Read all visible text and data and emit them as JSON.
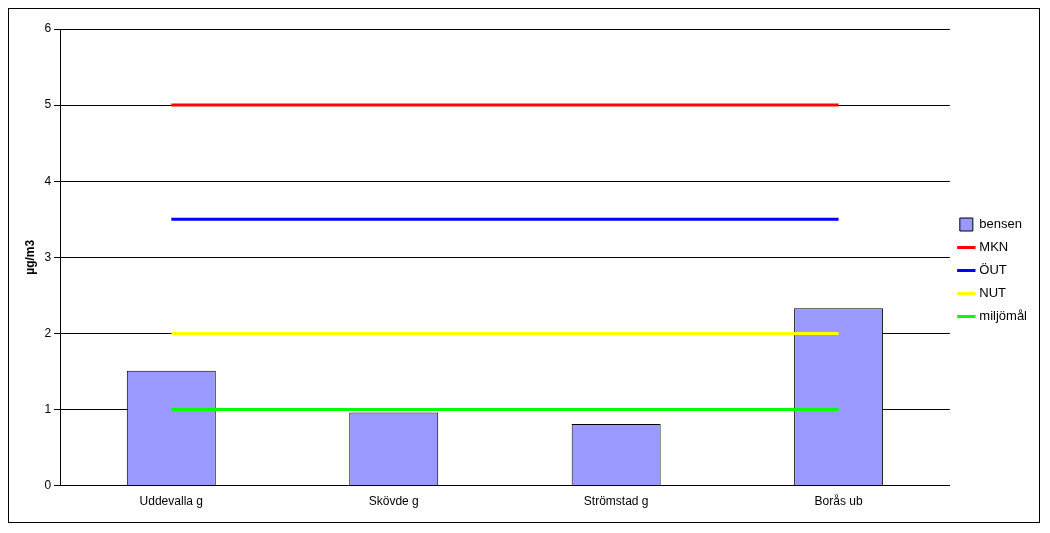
{
  "chart_data": {
    "type": "bar",
    "ylabel": "µg/m3",
    "categories": [
      "Uddevalla g",
      "Skövde g",
      "Strömstad g",
      "Borås ub"
    ],
    "series": [
      {
        "name": "bensen",
        "color": "#9999ff",
        "values": [
          1.51,
          0.96,
          0.81,
          2.33
        ]
      },
      {
        "name": "MKN",
        "type": "line",
        "color": "#ff0000",
        "values": [
          5,
          5,
          5,
          5
        ]
      },
      {
        "name": "ÖUT",
        "type": "line",
        "color": "#0000ff",
        "values": [
          3.5,
          3.5,
          3.5,
          3.5
        ]
      },
      {
        "name": "NUT",
        "type": "line",
        "color": "#ffff00",
        "values": [
          2,
          2,
          2,
          2
        ]
      },
      {
        "name": "miljömål",
        "type": "line",
        "color": "#00ff00",
        "values": [
          1,
          1,
          1,
          1
        ]
      }
    ],
    "ylim": [
      0,
      6
    ],
    "yticks": [
      0,
      1,
      2,
      3,
      4,
      5,
      6
    ],
    "grid": "y",
    "legend": "right",
    "marker": "none"
  }
}
